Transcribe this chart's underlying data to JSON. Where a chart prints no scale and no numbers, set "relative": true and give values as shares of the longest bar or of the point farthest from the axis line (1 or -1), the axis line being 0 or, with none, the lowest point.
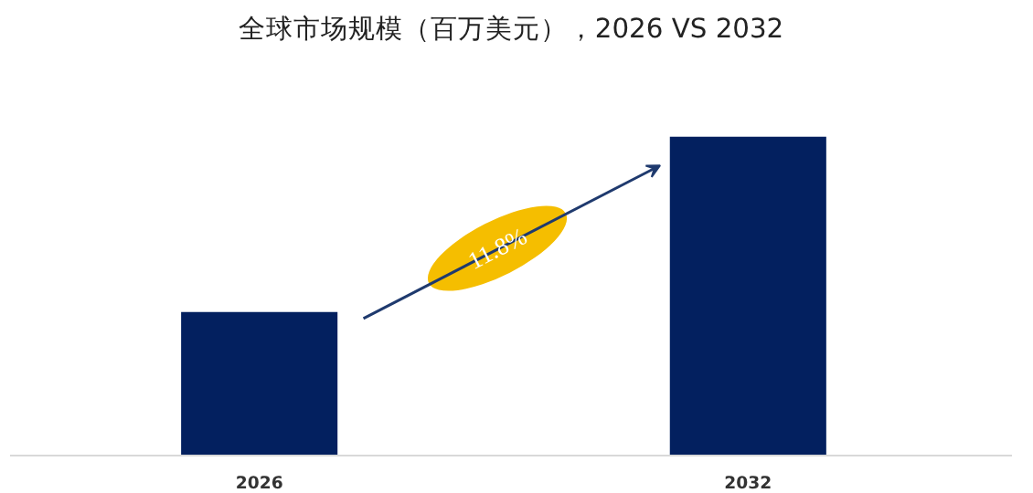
{
  "chart_data": {
    "type": "bar",
    "title": "全球市场规模（百万美元），2026 VS 2032",
    "categories": [
      "2026",
      "2032"
    ],
    "values": [
      0.45,
      1
    ],
    "color": "#03205f",
    "relative": true,
    "annotations": [
      "11.8%"
    ]
  }
}
